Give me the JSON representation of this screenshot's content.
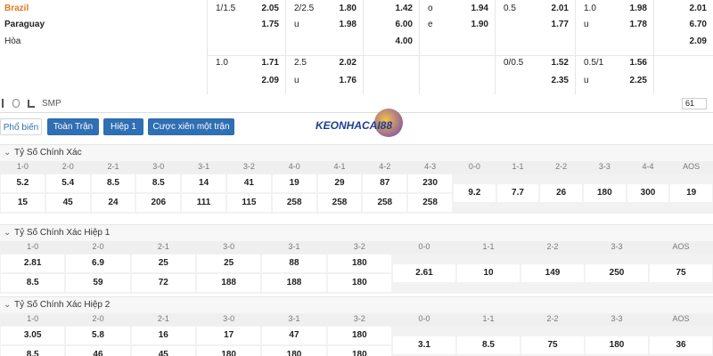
{
  "odds": {
    "rows": [
      {
        "team": "Brazil",
        "cells": [
          [
            "1/1.5",
            "2.05"
          ],
          [
            "2/2.5",
            "1.80"
          ],
          [
            null,
            "1.42"
          ],
          [
            "o",
            "1.94"
          ],
          [
            "0.5",
            "2.01"
          ],
          [
            "1.0",
            "1.98"
          ],
          [
            null,
            "2.01"
          ]
        ]
      },
      {
        "team": "Paraguay",
        "cells": [
          [
            null,
            "1.75"
          ],
          [
            "u",
            "1.98"
          ],
          [
            null,
            "6.00"
          ],
          [
            "e",
            "1.90"
          ],
          [
            null,
            "1.77"
          ],
          [
            "u",
            "1.78"
          ],
          [
            null,
            "6.70"
          ]
        ]
      },
      {
        "team": "Hòa",
        "cells": [
          null,
          null,
          [
            null,
            "4.00"
          ],
          null,
          null,
          null,
          [
            null,
            "2.09"
          ]
        ]
      },
      {
        "team": null,
        "cells": [
          [
            "1.0",
            "1.71"
          ],
          [
            "2.5",
            "2.02"
          ],
          null,
          null,
          [
            "0/0.5",
            "1.52"
          ],
          [
            "0.5/1",
            "1.56"
          ],
          null
        ]
      },
      {
        "team": null,
        "cells": [
          [
            null,
            "2.09"
          ],
          [
            "u",
            "1.76"
          ],
          null,
          null,
          [
            null,
            "2.35"
          ],
          [
            "u",
            "2.25"
          ],
          null
        ]
      }
    ]
  },
  "toolbar": {
    "label": "SMP",
    "count": "61"
  },
  "tabs": [
    "Phổ biến",
    "Toàn Trận",
    "Hiệp 1",
    "Cược xiên một trận"
  ],
  "logo": "KEONHACAI88",
  "sections": [
    {
      "title": "Tỷ Số Chính Xác",
      "home": {
        "headers": [
          "1-0",
          "2-0",
          "2-1",
          "3-0",
          "3-1",
          "3-2",
          "4-0",
          "4-1",
          "4-2",
          "4-3"
        ],
        "rows": [
          [
            "5.2",
            "5.4",
            "8.5",
            "8.5",
            "14",
            "41",
            "19",
            "29",
            "87",
            "230"
          ],
          [
            "15",
            "45",
            "24",
            "206",
            "111",
            "115",
            "258",
            "258",
            "258",
            "258"
          ]
        ]
      },
      "draw": {
        "headers": [
          "0-0",
          "1-1",
          "2-2",
          "3-3",
          "4-4",
          "AOS"
        ],
        "values": [
          "9.2",
          "7.7",
          "26",
          "180",
          "300",
          "19"
        ]
      }
    },
    {
      "title": "Tỷ Số Chính Xác Hiệp 1",
      "home": {
        "headers": [
          "1-0",
          "2-0",
          "2-1",
          "3-0",
          "3-1",
          "3-2"
        ],
        "rows": [
          [
            "2.81",
            "6.9",
            "25",
            "25",
            "88",
            "180"
          ],
          [
            "8.5",
            "59",
            "72",
            "188",
            "188",
            "180"
          ]
        ]
      },
      "draw": {
        "headers": [
          "0-0",
          "1-1",
          "2-2",
          "3-3",
          "AOS"
        ],
        "values": [
          "2.61",
          "10",
          "149",
          "250",
          "75"
        ]
      }
    },
    {
      "title": "Tỷ Số Chính Xác Hiệp 2",
      "home": {
        "headers": [
          "1-0",
          "2-0",
          "2-1",
          "3-0",
          "3-1",
          "3-2"
        ],
        "rows": [
          [
            "3.05",
            "5.8",
            "16",
            "17",
            "47",
            "180"
          ],
          [
            "8.5",
            "46",
            "45",
            "180",
            "180",
            "180"
          ]
        ]
      },
      "draw": {
        "headers": [
          "0-0",
          "1-1",
          "2-2",
          "3-3",
          "AOS"
        ],
        "values": [
          "3.1",
          "8.5",
          "75",
          "180",
          "36"
        ]
      }
    }
  ]
}
